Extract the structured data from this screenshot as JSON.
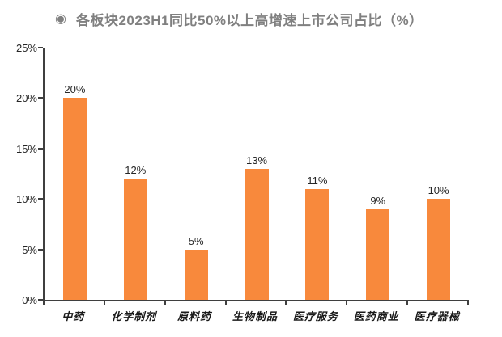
{
  "title": {
    "icon": "◉",
    "text": "各板块2023H1同比50%以上高增速上市公司占比（%）"
  },
  "colors": {
    "bar": "#F8893C",
    "title": "#808080",
    "axis": "#3F3F3F",
    "value_label": "#262626"
  },
  "chart_data": {
    "type": "bar",
    "title": "各板块2023H1同比50%以上高增速上市公司占比（%）",
    "categories": [
      "中药",
      "化学制剂",
      "原料药",
      "生物制品",
      "医疗服务",
      "医药商业",
      "医疗器械"
    ],
    "values": [
      20,
      12,
      5,
      13,
      11,
      9,
      10
    ],
    "value_labels": [
      "20%",
      "12%",
      "5%",
      "13%",
      "11%",
      "9%",
      "10%"
    ],
    "xlabel": "",
    "ylabel": "",
    "ylim": [
      0,
      25
    ],
    "ytick_labels": [
      "0%",
      "5%",
      "10%",
      "15%",
      "20%",
      "25%"
    ],
    "ytick_values": [
      0,
      5,
      10,
      15,
      20,
      25
    ],
    "grid": false,
    "legend": null,
    "bar_color": "#F8893C"
  }
}
